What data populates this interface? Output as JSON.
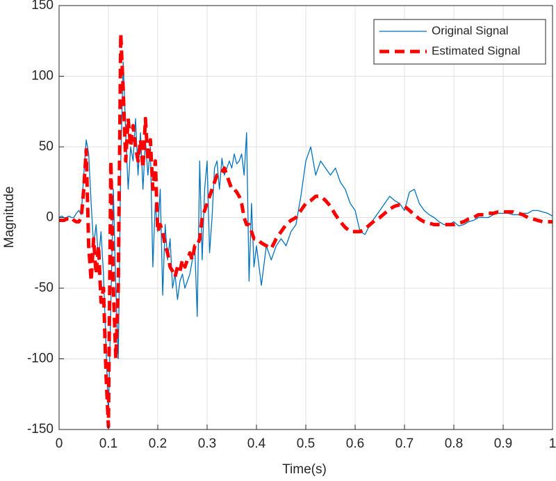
{
  "chart_data": {
    "type": "line",
    "xlabel": "Time(s)",
    "ylabel": "Magnitude",
    "x": [
      0,
      0.005,
      0.01,
      0.015,
      0.02,
      0.025,
      0.03,
      0.035,
      0.04,
      0.045,
      0.05,
      0.055,
      0.06,
      0.065,
      0.07,
      0.075,
      0.08,
      0.085,
      0.09,
      0.095,
      0.1,
      0.105,
      0.11,
      0.115,
      0.12,
      0.125,
      0.13,
      0.135,
      0.14,
      0.145,
      0.15,
      0.155,
      0.16,
      0.165,
      0.17,
      0.175,
      0.18,
      0.185,
      0.19,
      0.195,
      0.2,
      0.205,
      0.21,
      0.215,
      0.22,
      0.225,
      0.23,
      0.235,
      0.24,
      0.245,
      0.25,
      0.255,
      0.26,
      0.265,
      0.27,
      0.275,
      0.28,
      0.285,
      0.29,
      0.295,
      0.3,
      0.305,
      0.31,
      0.315,
      0.32,
      0.325,
      0.33,
      0.335,
      0.34,
      0.345,
      0.35,
      0.355,
      0.36,
      0.365,
      0.37,
      0.375,
      0.38,
      0.385,
      0.39,
      0.395,
      0.4,
      0.41,
      0.42,
      0.43,
      0.44,
      0.45,
      0.46,
      0.47,
      0.48,
      0.49,
      0.5,
      0.51,
      0.52,
      0.53,
      0.54,
      0.55,
      0.56,
      0.57,
      0.58,
      0.59,
      0.6,
      0.61,
      0.62,
      0.63,
      0.64,
      0.65,
      0.66,
      0.67,
      0.68,
      0.69,
      0.7,
      0.71,
      0.72,
      0.73,
      0.74,
      0.75,
      0.76,
      0.77,
      0.78,
      0.79,
      0.8,
      0.81,
      0.82,
      0.83,
      0.84,
      0.85,
      0.86,
      0.87,
      0.88,
      0.89,
      0.9,
      0.91,
      0.92,
      0.93,
      0.94,
      0.95,
      0.96,
      0.97,
      0.98,
      0.99,
      1
    ],
    "series": [
      {
        "name": "Original Signal",
        "color": "#0072bd",
        "linestyle": "solid",
        "values": [
          0,
          1,
          0,
          0,
          1,
          0,
          0,
          3,
          5,
          2,
          30,
          55,
          45,
          10,
          -20,
          -5,
          -30,
          -10,
          -40,
          -90,
          -140,
          -60,
          20,
          -50,
          -100,
          40,
          110,
          60,
          20,
          50,
          40,
          70,
          30,
          60,
          20,
          55,
          30,
          50,
          -35,
          10,
          -10,
          20,
          -55,
          -5,
          -30,
          -15,
          -50,
          -40,
          -58,
          -45,
          -40,
          -50,
          -45,
          -40,
          -30,
          -20,
          -70,
          40,
          -30,
          20,
          40,
          -25,
          0,
          35,
          40,
          20,
          42,
          30,
          35,
          40,
          35,
          45,
          38,
          40,
          45,
          30,
          60,
          -45,
          10,
          -35,
          -20,
          -48,
          -20,
          -30,
          -20,
          -15,
          -20,
          -10,
          -5,
          15,
          40,
          50,
          30,
          40,
          35,
          30,
          35,
          25,
          20,
          10,
          5,
          -10,
          -12,
          -5,
          0,
          5,
          10,
          15,
          12,
          10,
          5,
          18,
          20,
          10,
          5,
          2,
          0,
          -3,
          -5,
          -5,
          -3,
          -6,
          -5,
          -3,
          -2,
          0,
          0,
          0,
          2,
          3,
          3,
          3,
          2,
          2,
          3,
          3,
          5,
          5,
          4,
          3,
          1
        ]
      },
      {
        "name": "Estimated Signal",
        "color": "#ff0000",
        "linestyle": "dashed",
        "values": [
          -2,
          -2,
          -2,
          -1,
          -1,
          0,
          -2,
          -3,
          -3,
          0,
          20,
          48,
          -20,
          -45,
          -15,
          -40,
          -20,
          -60,
          -50,
          -110,
          -148,
          40,
          -50,
          -100,
          -50,
          130,
          90,
          40,
          70,
          50,
          65,
          50,
          40,
          55,
          35,
          70,
          40,
          55,
          20,
          40,
          -10,
          -5,
          -10,
          -20,
          -25,
          -35,
          -38,
          -42,
          -35,
          -38,
          -30,
          -35,
          -30,
          -25,
          -30,
          -20,
          -20,
          -15,
          0,
          5,
          10,
          15,
          20,
          25,
          30,
          30,
          32,
          35,
          30,
          25,
          20,
          20,
          18,
          15,
          10,
          0,
          -5,
          -5,
          -10,
          -15,
          -15,
          -18,
          -20,
          -22,
          -15,
          -10,
          -5,
          -2,
          0,
          5,
          10,
          12,
          15,
          15,
          12,
          8,
          2,
          -3,
          -7,
          -10,
          -10,
          -10,
          -8,
          -5,
          -2,
          0,
          3,
          6,
          8,
          9,
          8,
          5,
          2,
          -1,
          -3,
          -4,
          -5,
          -5,
          -5,
          -5,
          -5,
          -4,
          -3,
          -1,
          0,
          2,
          2,
          3,
          3,
          4,
          4,
          4,
          4,
          3,
          2,
          0,
          -1,
          -2,
          -3,
          -3,
          -3
        ]
      }
    ],
    "xlim": [
      0,
      1
    ],
    "xticks": [
      0,
      0.1,
      0.2,
      0.3,
      0.4,
      0.5,
      0.6,
      0.7,
      0.8,
      0.9,
      1
    ],
    "ylim": [
      -150,
      150
    ],
    "yticks": [
      -150,
      -100,
      -50,
      0,
      50,
      100,
      150
    ],
    "grid": true,
    "legend": "upper right"
  }
}
